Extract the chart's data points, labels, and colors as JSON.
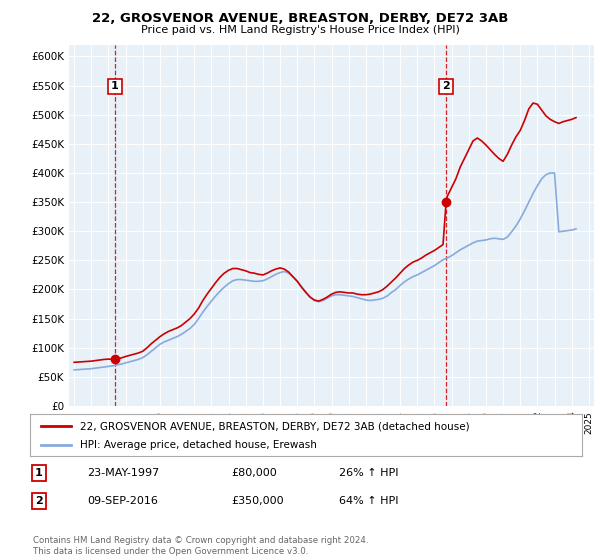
{
  "title": "22, GROSVENOR AVENUE, BREASTON, DERBY, DE72 3AB",
  "subtitle": "Price paid vs. HM Land Registry's House Price Index (HPI)",
  "plot_bg_color": "#e8f0f8",
  "ylim": [
    0,
    620000
  ],
  "yticks": [
    0,
    50000,
    100000,
    150000,
    200000,
    250000,
    300000,
    350000,
    400000,
    450000,
    500000,
    550000,
    600000
  ],
  "ytick_labels": [
    "£0",
    "£50K",
    "£100K",
    "£150K",
    "£200K",
    "£250K",
    "£300K",
    "£350K",
    "£400K",
    "£450K",
    "£500K",
    "£550K",
    "£600K"
  ],
  "sale1_year": 1997.38,
  "sale1_price": 80000,
  "sale1_label": "1",
  "sale2_year": 2016.68,
  "sale2_price": 350000,
  "sale2_label": "2",
  "sale_color": "#cc0000",
  "hpi_color": "#88aadd",
  "legend_label1": "22, GROSVENOR AVENUE, BREASTON, DERBY, DE72 3AB (detached house)",
  "legend_label2": "HPI: Average price, detached house, Erewash",
  "table_row1": [
    "1",
    "23-MAY-1997",
    "£80,000",
    "26% ↑ HPI"
  ],
  "table_row2": [
    "2",
    "09-SEP-2016",
    "£350,000",
    "64% ↑ HPI"
  ],
  "footer": "Contains HM Land Registry data © Crown copyright and database right 2024.\nThis data is licensed under the Open Government Licence v3.0.",
  "hpi_data": {
    "years": [
      1995.0,
      1995.25,
      1995.5,
      1995.75,
      1996.0,
      1996.25,
      1996.5,
      1996.75,
      1997.0,
      1997.25,
      1997.5,
      1997.75,
      1998.0,
      1998.25,
      1998.5,
      1998.75,
      1999.0,
      1999.25,
      1999.5,
      1999.75,
      2000.0,
      2000.25,
      2000.5,
      2000.75,
      2001.0,
      2001.25,
      2001.5,
      2001.75,
      2002.0,
      2002.25,
      2002.5,
      2002.75,
      2003.0,
      2003.25,
      2003.5,
      2003.75,
      2004.0,
      2004.25,
      2004.5,
      2004.75,
      2005.0,
      2005.25,
      2005.5,
      2005.75,
      2006.0,
      2006.25,
      2006.5,
      2006.75,
      2007.0,
      2007.25,
      2007.5,
      2007.75,
      2008.0,
      2008.25,
      2008.5,
      2008.75,
      2009.0,
      2009.25,
      2009.5,
      2009.75,
      2010.0,
      2010.25,
      2010.5,
      2010.75,
      2011.0,
      2011.25,
      2011.5,
      2011.75,
      2012.0,
      2012.25,
      2012.5,
      2012.75,
      2013.0,
      2013.25,
      2013.5,
      2013.75,
      2014.0,
      2014.25,
      2014.5,
      2014.75,
      2015.0,
      2015.25,
      2015.5,
      2015.75,
      2016.0,
      2016.25,
      2016.5,
      2016.75,
      2017.0,
      2017.25,
      2017.5,
      2017.75,
      2018.0,
      2018.25,
      2018.5,
      2018.75,
      2019.0,
      2019.25,
      2019.5,
      2019.75,
      2020.0,
      2020.25,
      2020.5,
      2020.75,
      2021.0,
      2021.25,
      2021.5,
      2021.75,
      2022.0,
      2022.25,
      2022.5,
      2022.75,
      2023.0,
      2023.25,
      2023.5,
      2023.75,
      2024.0,
      2024.25
    ],
    "values": [
      62000,
      62500,
      63000,
      63500,
      64000,
      65000,
      66000,
      67000,
      68000,
      69000,
      70500,
      72000,
      74000,
      76000,
      78000,
      80000,
      83000,
      88000,
      94000,
      100000,
      106000,
      110000,
      113000,
      116000,
      119000,
      123000,
      128000,
      133000,
      140000,
      150000,
      161000,
      171000,
      180000,
      189000,
      197000,
      204000,
      210000,
      215000,
      217000,
      217000,
      216000,
      215000,
      214000,
      214000,
      215000,
      218000,
      222000,
      226000,
      229000,
      231000,
      228000,
      222000,
      215000,
      205000,
      196000,
      187000,
      181000,
      179000,
      181000,
      185000,
      189000,
      191000,
      191000,
      190000,
      189000,
      188000,
      186000,
      184000,
      182000,
      181000,
      182000,
      183000,
      185000,
      189000,
      195000,
      200000,
      207000,
      213000,
      218000,
      222000,
      225000,
      229000,
      233000,
      237000,
      241000,
      246000,
      251000,
      254000,
      258000,
      263000,
      268000,
      272000,
      276000,
      280000,
      283000,
      284000,
      285000,
      287000,
      288000,
      287000,
      286000,
      290000,
      299000,
      309000,
      321000,
      335000,
      350000,
      365000,
      378000,
      390000,
      397000,
      400000,
      400000,
      299000,
      300000,
      301000,
      302000,
      304000
    ]
  },
  "price_line_data": {
    "years": [
      1995.0,
      1995.25,
      1995.5,
      1995.75,
      1996.0,
      1996.25,
      1996.5,
      1996.75,
      1997.0,
      1997.25,
      1997.38,
      1997.5,
      1997.75,
      1998.0,
      1998.25,
      1998.5,
      1998.75,
      1999.0,
      1999.25,
      1999.5,
      1999.75,
      2000.0,
      2000.25,
      2000.5,
      2000.75,
      2001.0,
      2001.25,
      2001.5,
      2001.75,
      2002.0,
      2002.25,
      2002.5,
      2002.75,
      2003.0,
      2003.25,
      2003.5,
      2003.75,
      2004.0,
      2004.25,
      2004.5,
      2004.75,
      2005.0,
      2005.25,
      2005.5,
      2005.75,
      2006.0,
      2006.25,
      2006.5,
      2006.75,
      2007.0,
      2007.25,
      2007.5,
      2007.75,
      2008.0,
      2008.25,
      2008.5,
      2008.75,
      2009.0,
      2009.25,
      2009.5,
      2009.75,
      2010.0,
      2010.25,
      2010.5,
      2010.75,
      2011.0,
      2011.25,
      2011.5,
      2011.75,
      2012.0,
      2012.25,
      2012.5,
      2012.75,
      2013.0,
      2013.25,
      2013.5,
      2013.75,
      2014.0,
      2014.25,
      2014.5,
      2014.75,
      2015.0,
      2015.25,
      2015.5,
      2015.75,
      2016.0,
      2016.25,
      2016.5,
      2016.68,
      2016.75,
      2017.0,
      2017.25,
      2017.5,
      2017.75,
      2018.0,
      2018.25,
      2018.5,
      2018.75,
      2019.0,
      2019.25,
      2019.5,
      2019.75,
      2020.0,
      2020.25,
      2020.5,
      2020.75,
      2021.0,
      2021.25,
      2021.5,
      2021.75,
      2022.0,
      2022.25,
      2022.5,
      2022.75,
      2023.0,
      2023.25,
      2023.5,
      2023.75,
      2024.0,
      2024.25
    ],
    "values": [
      75000,
      75500,
      76000,
      76500,
      77000,
      78000,
      79000,
      80000,
      80500,
      80000,
      80000,
      81000,
      82500,
      85000,
      87000,
      89000,
      91000,
      94000,
      100000,
      107000,
      113000,
      119000,
      124000,
      128000,
      131000,
      134000,
      138000,
      144000,
      150000,
      158000,
      168000,
      181000,
      192000,
      202000,
      212000,
      221000,
      228000,
      233000,
      236000,
      236000,
      234000,
      232000,
      229000,
      228000,
      226000,
      225000,
      228000,
      232000,
      235000,
      237000,
      235000,
      230000,
      222000,
      214000,
      204000,
      195000,
      187000,
      182000,
      180000,
      183000,
      187000,
      192000,
      195000,
      196000,
      195000,
      194000,
      194000,
      192000,
      191000,
      191000,
      192000,
      194000,
      196000,
      200000,
      206000,
      213000,
      220000,
      228000,
      236000,
      242000,
      247000,
      250000,
      254000,
      259000,
      263000,
      267000,
      272000,
      277000,
      350000,
      360000,
      375000,
      390000,
      410000,
      425000,
      440000,
      455000,
      460000,
      455000,
      448000,
      440000,
      432000,
      425000,
      420000,
      432000,
      448000,
      462000,
      473000,
      490000,
      510000,
      520000,
      518000,
      508000,
      498000,
      492000,
      488000,
      485000,
      488000,
      490000,
      492000,
      495000
    ]
  }
}
